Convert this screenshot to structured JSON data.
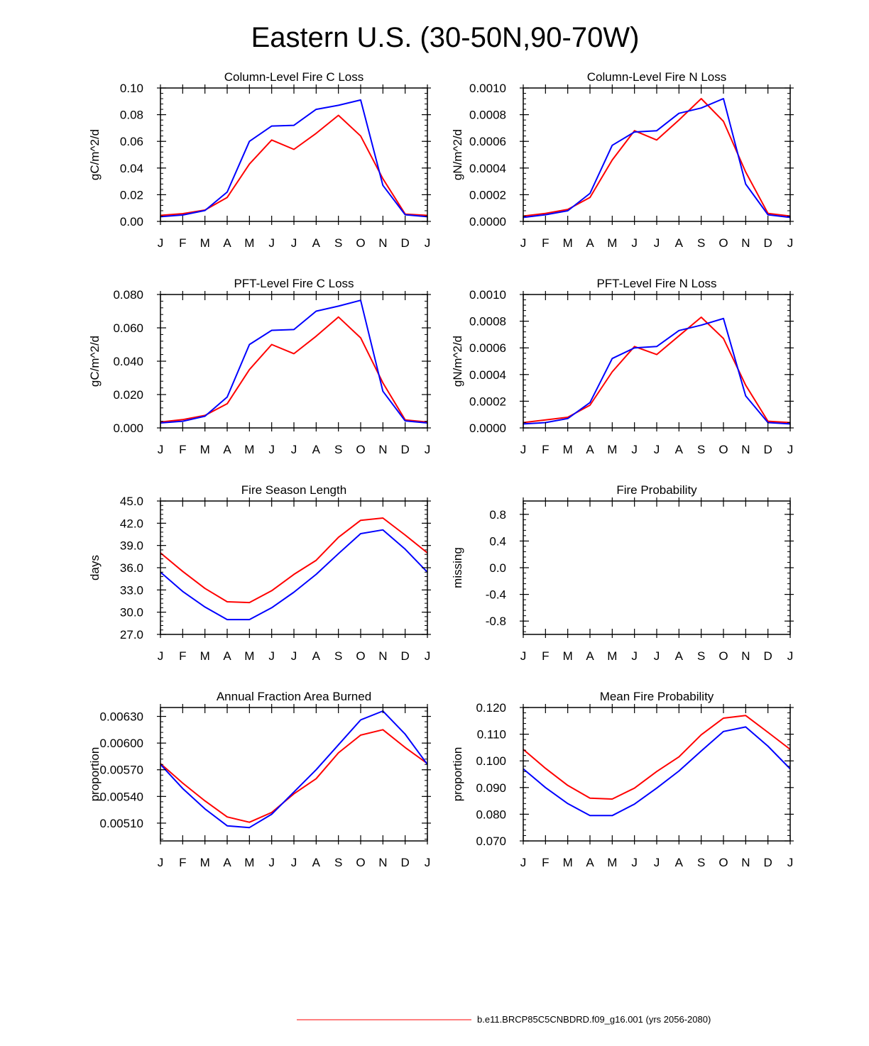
{
  "title": "Eastern U.S. (30-50N,90-70W)",
  "legend": {
    "entries": [
      {
        "label": "b.e11.BRCP85C5CNBDRD.f09_g16.001 (yrs 2056-2080)",
        "color": "#ff0000"
      }
    ]
  },
  "colors": {
    "series_red": "#ff0000",
    "series_blue": "#0000ff",
    "axis": "#000000"
  },
  "chart_data": [
    {
      "type": "line",
      "title": "Column-Level Fire C Loss",
      "ylabel": "gC/m^2/d",
      "categories": [
        "J",
        "F",
        "M",
        "A",
        "M",
        "J",
        "J",
        "A",
        "S",
        "O",
        "N",
        "D",
        "J"
      ],
      "ylim": [
        0,
        0.1
      ],
      "yticks": [
        "0.00",
        "0.02",
        "0.04",
        "0.06",
        "0.08",
        "0.10"
      ],
      "series": [
        {
          "name": "red",
          "values": [
            0.0045,
            0.0058,
            0.0085,
            0.018,
            0.043,
            0.061,
            0.054,
            0.066,
            0.0795,
            0.064,
            0.032,
            0.0055,
            0.0045
          ]
        },
        {
          "name": "blue",
          "values": [
            0.0035,
            0.0048,
            0.0082,
            0.022,
            0.06,
            0.0715,
            0.072,
            0.084,
            0.087,
            0.091,
            0.027,
            0.005,
            0.0035
          ]
        }
      ]
    },
    {
      "type": "line",
      "title": "Column-Level Fire N Loss",
      "ylabel": "gN/m^2/d",
      "categories": [
        "J",
        "F",
        "M",
        "A",
        "M",
        "J",
        "J",
        "A",
        "S",
        "O",
        "N",
        "D",
        "J"
      ],
      "ylim": [
        0,
        0.001
      ],
      "yticks": [
        "0.0000",
        "0.0002",
        "0.0004",
        "0.0006",
        "0.0008",
        "0.0010"
      ],
      "series": [
        {
          "name": "red",
          "values": [
            4e-05,
            6e-05,
            9e-05,
            0.00018,
            0.00046,
            0.00068,
            0.00061,
            0.00076,
            0.00092,
            0.00075,
            0.00037,
            6e-05,
            4e-05
          ]
        },
        {
          "name": "blue",
          "values": [
            3e-05,
            5e-05,
            8e-05,
            0.00021,
            0.00057,
            0.00067,
            0.00068,
            0.00081,
            0.00085,
            0.00092,
            0.00028,
            5e-05,
            3e-05
          ]
        }
      ]
    },
    {
      "type": "line",
      "title": "PFT-Level Fire C Loss",
      "ylabel": "gC/m^2/d",
      "categories": [
        "J",
        "F",
        "M",
        "A",
        "M",
        "J",
        "J",
        "A",
        "S",
        "O",
        "N",
        "D",
        "J"
      ],
      "ylim": [
        0,
        0.08
      ],
      "yticks": [
        "0.000",
        "0.020",
        "0.040",
        "0.060",
        "0.080"
      ],
      "series": [
        {
          "name": "red",
          "values": [
            0.0035,
            0.005,
            0.0075,
            0.0145,
            0.035,
            0.05,
            0.0445,
            0.055,
            0.0665,
            0.054,
            0.027,
            0.0048,
            0.0035
          ]
        },
        {
          "name": "blue",
          "values": [
            0.003,
            0.004,
            0.007,
            0.0185,
            0.05,
            0.0585,
            0.059,
            0.07,
            0.073,
            0.0765,
            0.022,
            0.0042,
            0.003
          ]
        }
      ]
    },
    {
      "type": "line",
      "title": "PFT-Level Fire N Loss",
      "ylabel": "gN/m^2/d",
      "categories": [
        "J",
        "F",
        "M",
        "A",
        "M",
        "J",
        "J",
        "A",
        "S",
        "O",
        "N",
        "D",
        "J"
      ],
      "ylim": [
        0,
        0.001
      ],
      "yticks": [
        "0.0000",
        "0.0002",
        "0.0004",
        "0.0006",
        "0.0008",
        "0.0010"
      ],
      "series": [
        {
          "name": "red",
          "values": [
            4e-05,
            6e-05,
            8e-05,
            0.00017,
            0.00042,
            0.00061,
            0.00055,
            0.00069,
            0.00083,
            0.00067,
            0.00032,
            5e-05,
            4e-05
          ]
        },
        {
          "name": "blue",
          "values": [
            3e-05,
            4e-05,
            7e-05,
            0.00019,
            0.00052,
            0.0006,
            0.00061,
            0.00073,
            0.00077,
            0.00082,
            0.00024,
            4e-05,
            3e-05
          ]
        }
      ]
    },
    {
      "type": "line",
      "title": "Fire Season Length",
      "ylabel": "days",
      "categories": [
        "J",
        "F",
        "M",
        "A",
        "M",
        "J",
        "J",
        "A",
        "S",
        "O",
        "N",
        "D",
        "J"
      ],
      "ylim": [
        27,
        45
      ],
      "yticks": [
        "27.0",
        "30.0",
        "33.0",
        "36.0",
        "39.0",
        "42.0",
        "45.0"
      ],
      "series": [
        {
          "name": "red",
          "values": [
            38.0,
            35.5,
            33.2,
            31.4,
            31.3,
            32.9,
            35.1,
            37.0,
            40.1,
            42.4,
            42.7,
            40.4,
            38.0
          ]
        },
        {
          "name": "blue",
          "values": [
            35.4,
            32.8,
            30.7,
            29.0,
            29.0,
            30.6,
            32.7,
            35.1,
            37.9,
            40.6,
            41.1,
            38.5,
            35.4
          ]
        }
      ]
    },
    {
      "type": "line",
      "title": "Fire Probability",
      "ylabel": "missing",
      "categories": [
        "J",
        "F",
        "M",
        "A",
        "M",
        "J",
        "J",
        "A",
        "S",
        "O",
        "N",
        "D",
        "J"
      ],
      "ylim": [
        -1,
        1
      ],
      "yticks": [
        "-0.8",
        "-0.4",
        "0.0",
        "0.4",
        "0.8"
      ],
      "series": []
    },
    {
      "type": "line",
      "title": "Annual Fraction Area Burned",
      "ylabel": "proportion",
      "categories": [
        "J",
        "F",
        "M",
        "A",
        "M",
        "J",
        "J",
        "A",
        "S",
        "O",
        "N",
        "D",
        "J"
      ],
      "ylim": [
        0.0049,
        0.0064
      ],
      "yticks": [
        "0.00510",
        "0.00540",
        "0.00570",
        "0.00600",
        "0.00630"
      ],
      "series": [
        {
          "name": "red",
          "values": [
            0.00577,
            0.00555,
            0.00535,
            0.00517,
            0.00511,
            0.00522,
            0.00543,
            0.0056,
            0.00589,
            0.00609,
            0.00615,
            0.00595,
            0.00577
          ]
        },
        {
          "name": "blue",
          "values": [
            0.00576,
            0.00549,
            0.00526,
            0.00507,
            0.00505,
            0.0052,
            0.00545,
            0.0057,
            0.00598,
            0.00626,
            0.00636,
            0.0061,
            0.00576
          ]
        }
      ]
    },
    {
      "type": "line",
      "title": "Mean Fire Probability",
      "ylabel": "proportion",
      "categories": [
        "J",
        "F",
        "M",
        "A",
        "M",
        "J",
        "J",
        "A",
        "S",
        "O",
        "N",
        "D",
        "J"
      ],
      "ylim": [
        0.07,
        0.12
      ],
      "yticks": [
        "0.070",
        "0.080",
        "0.090",
        "0.100",
        "0.110",
        "0.120"
      ],
      "series": [
        {
          "name": "red",
          "values": [
            0.1043,
            0.0972,
            0.0908,
            0.086,
            0.0857,
            0.0898,
            0.096,
            0.1015,
            0.1098,
            0.116,
            0.117,
            0.1107,
            0.1043
          ]
        },
        {
          "name": "blue",
          "values": [
            0.097,
            0.09,
            0.084,
            0.0795,
            0.0795,
            0.0838,
            0.0898,
            0.0962,
            0.1037,
            0.111,
            0.1127,
            0.1055,
            0.097
          ]
        }
      ]
    }
  ]
}
